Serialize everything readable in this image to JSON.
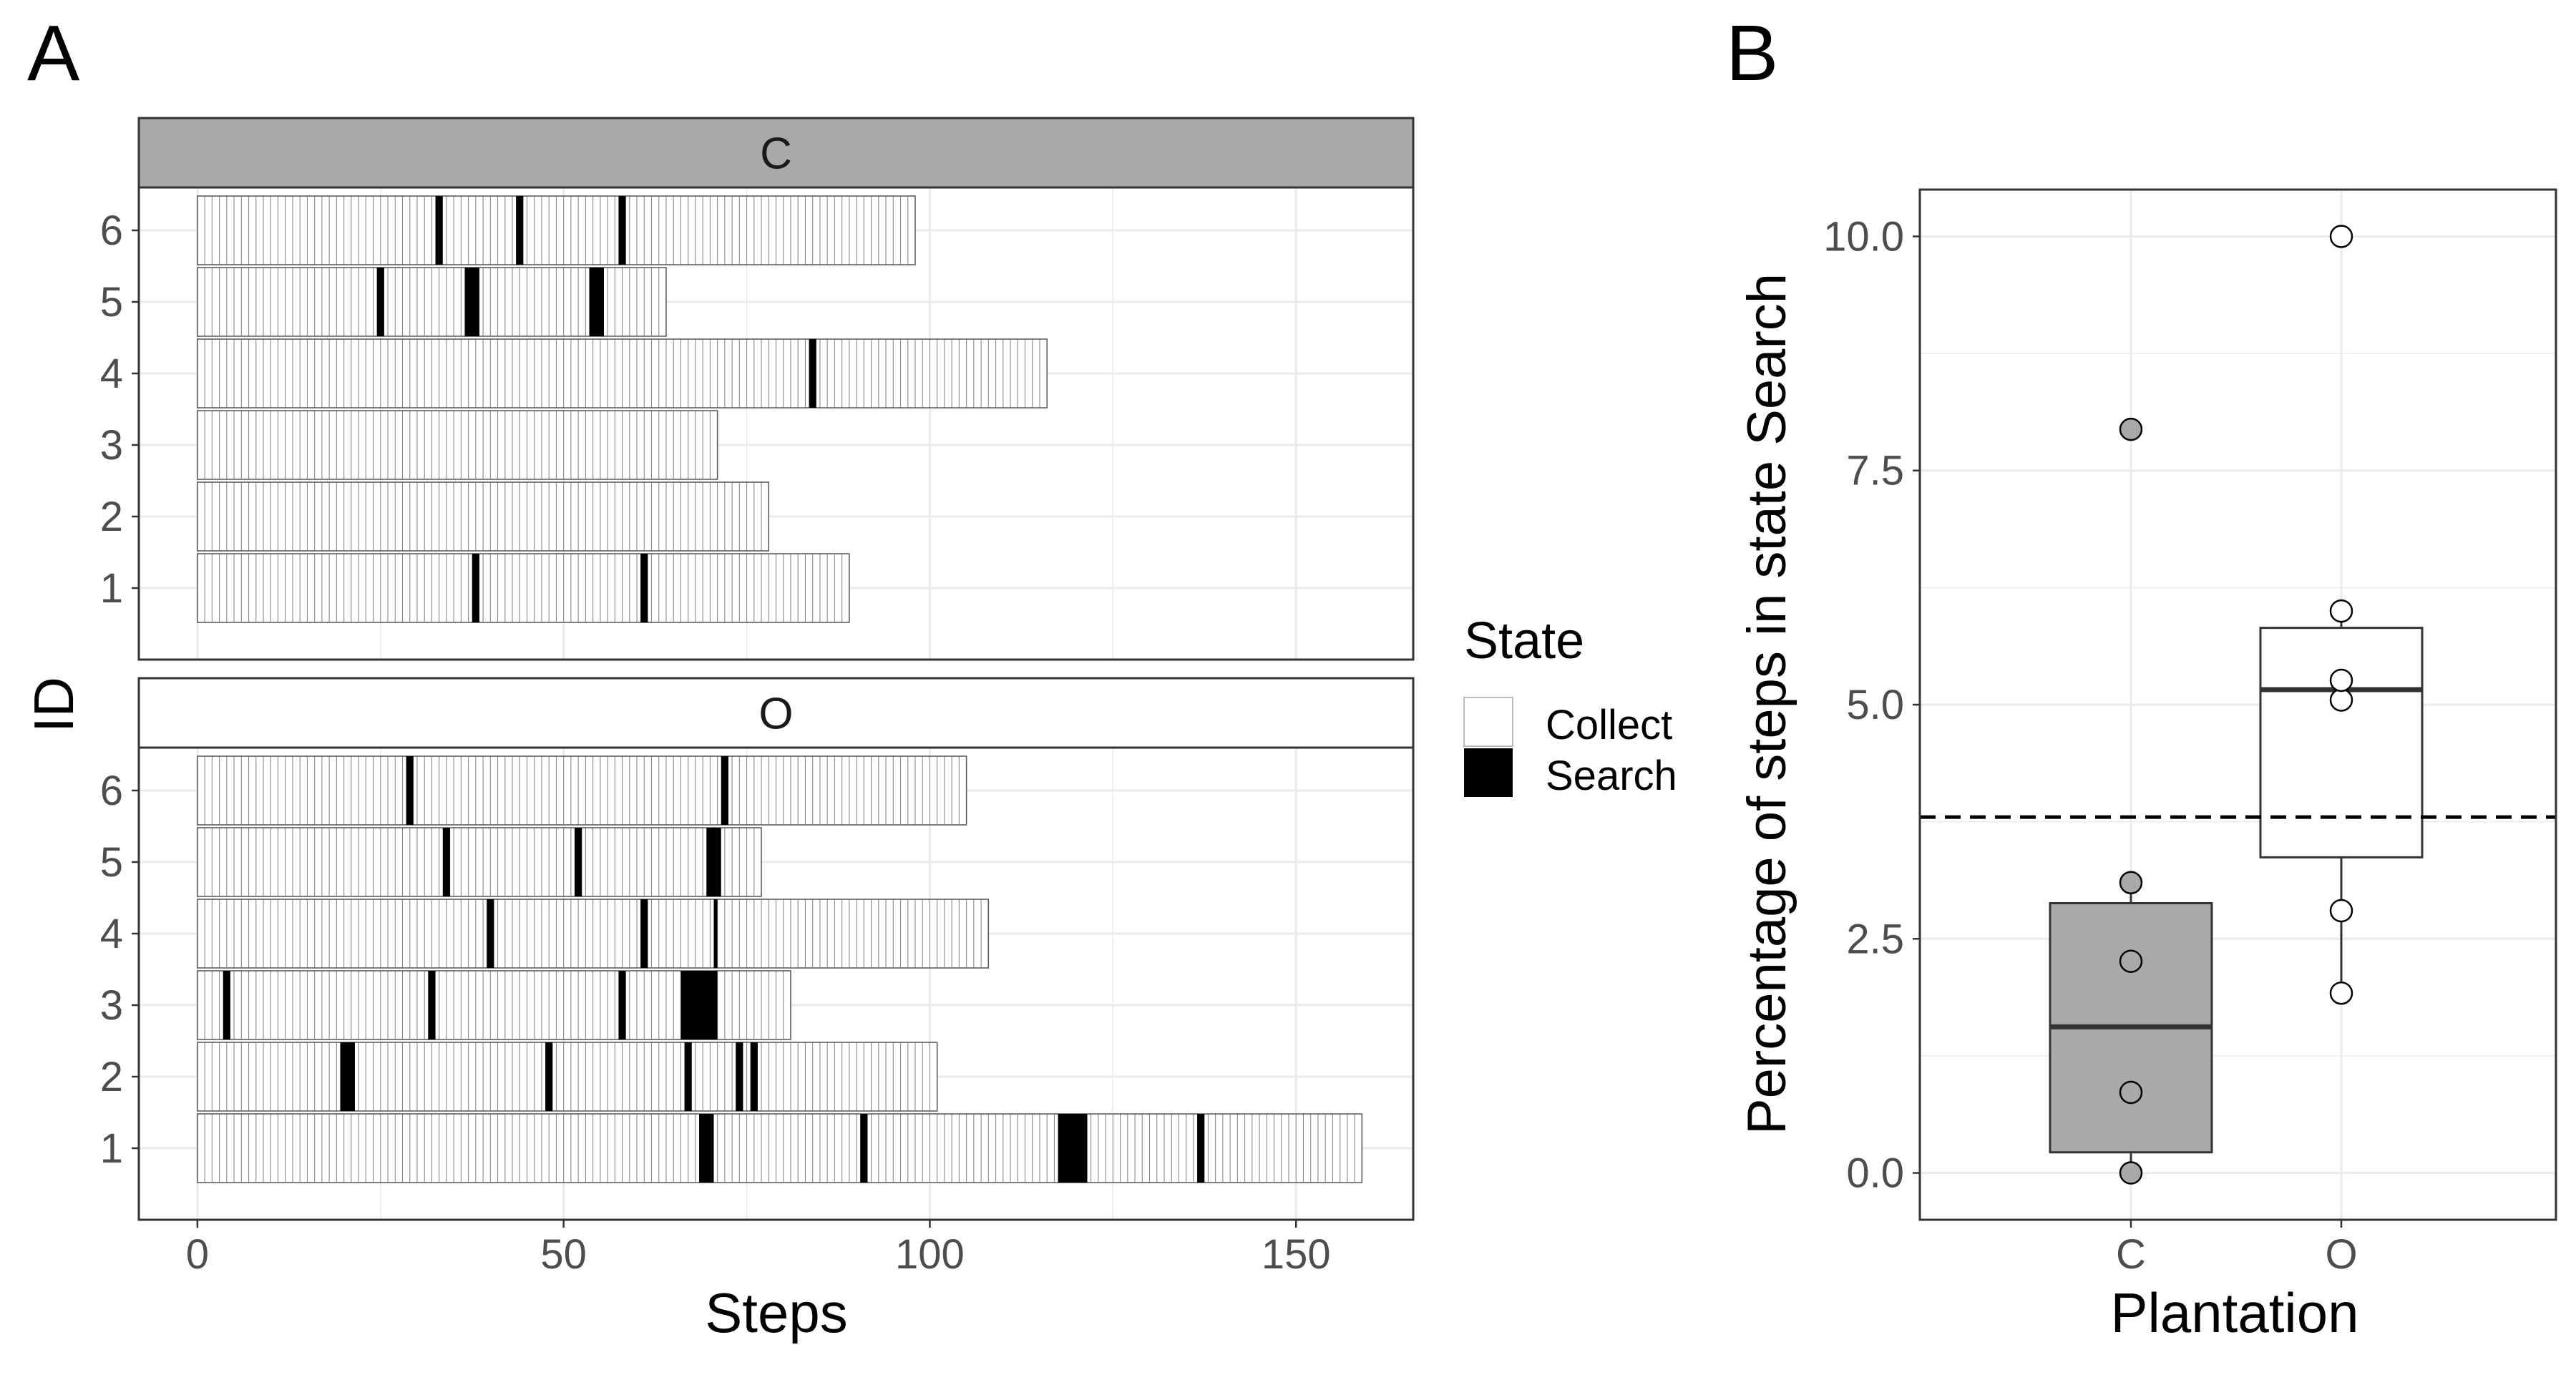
{
  "panel_a": {
    "label": "A",
    "ylabel": "ID",
    "xlabel": "Steps",
    "x_ticks": [
      0,
      50,
      100,
      150
    ]
  },
  "panel_b": {
    "label": "B",
    "ylabel": "Percentage of steps in state Search",
    "xlabel": "Plantation",
    "y_ticks": [
      "0.0",
      "2.5",
      "5.0",
      "7.5",
      "10.0"
    ]
  },
  "legend": {
    "title": "State",
    "items": [
      {
        "label": "Collect",
        "color": "#ffffff"
      },
      {
        "label": "Search",
        "color": "#000000"
      }
    ]
  },
  "colors": {
    "strip_c": "#a9a9a9",
    "strip_o": "#ffffff",
    "box_c": "#a9a9a9",
    "box_o": "#ffffff",
    "grid": "#ebebeb",
    "search": "#000000"
  },
  "chart_data": [
    {
      "type": "bar",
      "title": "",
      "xlabel": "Steps",
      "ylabel": "ID",
      "xlim": [
        -8,
        166
      ],
      "x_ticks": [
        0,
        50,
        100,
        150
      ],
      "grid": true,
      "legend": {
        "title": "State",
        "placement": "right",
        "entries": [
          "Collect",
          "Search"
        ]
      },
      "facets": [
        {
          "label": "C",
          "rows": [
            {
              "id": 6,
              "steps": 98,
              "search": [
                [
                  32.5,
                  33.5
                ],
                [
                  43.5,
                  44.5
                ],
                [
                  57.5,
                  58.5
                ]
              ]
            },
            {
              "id": 5,
              "steps": 64,
              "search": [
                [
                  24.5,
                  25.5
                ],
                [
                  36.5,
                  38.5
                ],
                [
                  53.5,
                  55.5
                ]
              ]
            },
            {
              "id": 4,
              "steps": 116,
              "search": [
                [
                  83.5,
                  84.5
                ]
              ]
            },
            {
              "id": 3,
              "steps": 71,
              "search": []
            },
            {
              "id": 2,
              "steps": 78,
              "search": []
            },
            {
              "id": 1,
              "steps": 89,
              "search": [
                [
                  37.5,
                  38.5
                ],
                [
                  60.5,
                  61.5
                ]
              ]
            }
          ]
        },
        {
          "label": "O",
          "rows": [
            {
              "id": 6,
              "steps": 105,
              "search": [
                [
                  28.5,
                  29.5
                ],
                [
                  71.5,
                  72.5
                ]
              ]
            },
            {
              "id": 5,
              "steps": 77,
              "search": [
                [
                  33.5,
                  34.5
                ],
                [
                  51.5,
                  52.5
                ],
                [
                  69.5,
                  71.5
                ]
              ]
            },
            {
              "id": 4,
              "steps": 108,
              "search": [
                [
                  39.5,
                  40.5
                ],
                [
                  60.5,
                  61.5
                ],
                [
                  70.5,
                  71
                ]
              ]
            },
            {
              "id": 3,
              "steps": 81,
              "search": [
                [
                  3.5,
                  4.5
                ],
                [
                  31.5,
                  32.5
                ],
                [
                  57.5,
                  58.5
                ],
                [
                  66,
                  71
                ]
              ]
            },
            {
              "id": 2,
              "steps": 101,
              "search": [
                [
                  19.5,
                  21.5
                ],
                [
                  47.5,
                  48.5
                ],
                [
                  66.5,
                  67.5
                ],
                [
                  73.5,
                  74.5
                ],
                [
                  75.5,
                  76.5
                ]
              ]
            },
            {
              "id": 1,
              "steps": 159,
              "search": [
                [
                  68.5,
                  70.5
                ],
                [
                  90.5,
                  91.5
                ],
                [
                  117.5,
                  121.5
                ],
                [
                  136.5,
                  137.5
                ]
              ]
            }
          ]
        }
      ]
    },
    {
      "type": "box",
      "title": "",
      "xlabel": "Plantation",
      "ylabel": "Percentage of steps in state Search",
      "categories": [
        "C",
        "O"
      ],
      "ylim": [
        -0.5,
        10.5
      ],
      "y_ticks": [
        0.0,
        2.5,
        5.0,
        7.5,
        10.0
      ],
      "reference_line": 3.8,
      "grid": true,
      "boxes": [
        {
          "category": "C",
          "q1": 0.22,
          "median": 1.56,
          "q3": 2.88,
          "whisker_low": 0.0,
          "whisker_high": 3.1,
          "points": [
            0.0,
            0.86,
            2.26,
            3.1,
            7.94
          ]
        },
        {
          "category": "O",
          "q1": 3.37,
          "median": 5.16,
          "q3": 5.82,
          "whisker_low": 1.92,
          "whisker_high": 6.0,
          "points": [
            1.92,
            2.8,
            5.05,
            5.26,
            6.0,
            10.0
          ]
        }
      ]
    }
  ]
}
